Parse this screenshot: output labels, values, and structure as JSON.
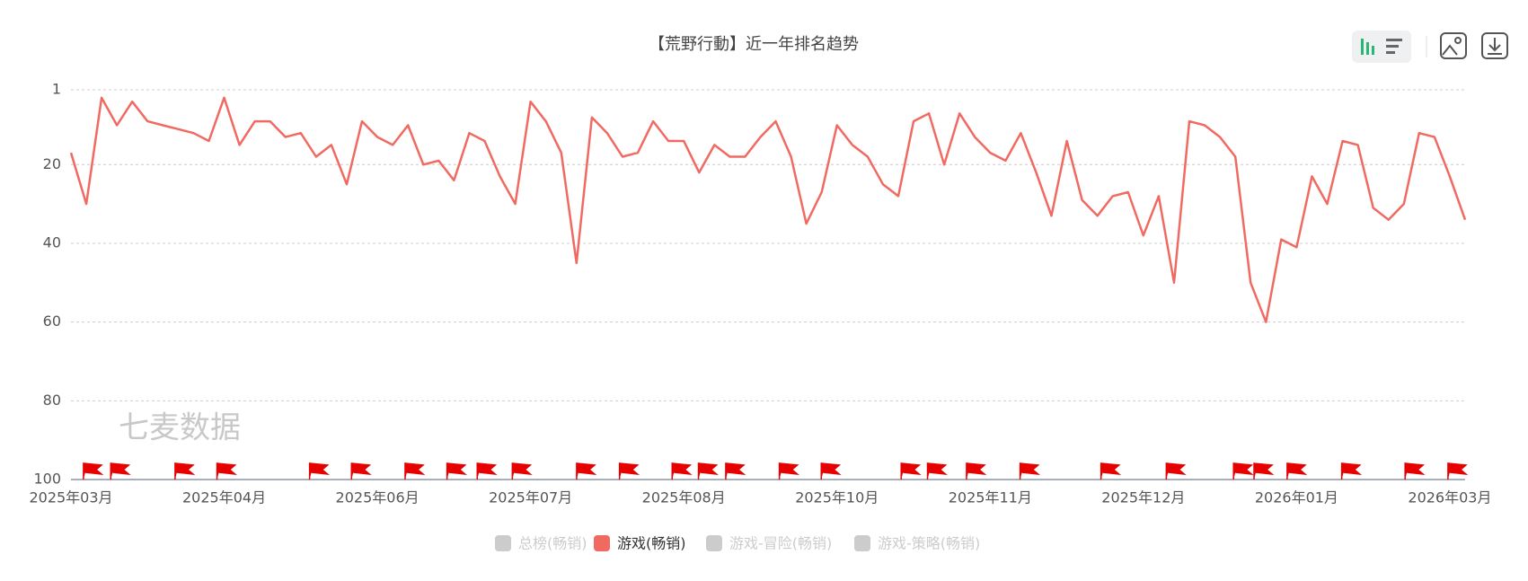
{
  "chart_data": {
    "type": "line",
    "title": "【荒野行動】近一年排名趋势",
    "watermark": "七麦数据",
    "inverted": true,
    "ylim": [
      1,
      100
    ],
    "yticks": [
      1,
      20,
      40,
      60,
      80,
      100
    ],
    "grid": true,
    "categories": [
      "2025年03月",
      null,
      null,
      null,
      null,
      null,
      null,
      null,
      null,
      null,
      "2025年04月",
      null,
      null,
      null,
      null,
      null,
      null,
      null,
      null,
      null,
      "2025年06月",
      null,
      null,
      null,
      null,
      null,
      null,
      null,
      null,
      null,
      "2025年07月",
      null,
      null,
      null,
      null,
      null,
      null,
      null,
      null,
      null,
      "2025年08月",
      null,
      null,
      null,
      null,
      null,
      null,
      null,
      null,
      null,
      "2025年10月",
      null,
      null,
      null,
      null,
      null,
      null,
      null,
      null,
      null,
      "2025年11月",
      null,
      null,
      null,
      null,
      null,
      null,
      null,
      null,
      null,
      "2025年12月",
      null,
      null,
      null,
      null,
      null,
      null,
      null,
      null,
      null,
      "2026年01月",
      null,
      null,
      null,
      null,
      null,
      null,
      null,
      null,
      null,
      "2026年03月",
      null
    ],
    "series": [
      {
        "name": "游戏(畅销)",
        "color": "#f06a62",
        "values": [
          17,
          30,
          3,
          10,
          4,
          9,
          10,
          11,
          12,
          14,
          3,
          15,
          9,
          9,
          13,
          12,
          18,
          15,
          25,
          9,
          13,
          15,
          10,
          20,
          19,
          24,
          12,
          14,
          23,
          30,
          4,
          9,
          17,
          45,
          8,
          12,
          18,
          17,
          9,
          14,
          14,
          22,
          15,
          18,
          18,
          13,
          9,
          18,
          35,
          27,
          10,
          15,
          18,
          25,
          28,
          9,
          7,
          20,
          7,
          13,
          17,
          19,
          12,
          22,
          33,
          14,
          29,
          33,
          28,
          27,
          38,
          28,
          50,
          9,
          10,
          13,
          18,
          50,
          60,
          39,
          41,
          23,
          30,
          14,
          15,
          31,
          34,
          30,
          12,
          13,
          23,
          34
        ]
      }
    ],
    "inactive_series": [
      {
        "name": "总榜(畅销)",
        "color": "#cccccc"
      },
      {
        "name": "游戏-冒险(畅销)",
        "color": "#cccccc"
      },
      {
        "name": "游戏-策略(畅销)",
        "color": "#cccccc"
      }
    ]
  }
}
